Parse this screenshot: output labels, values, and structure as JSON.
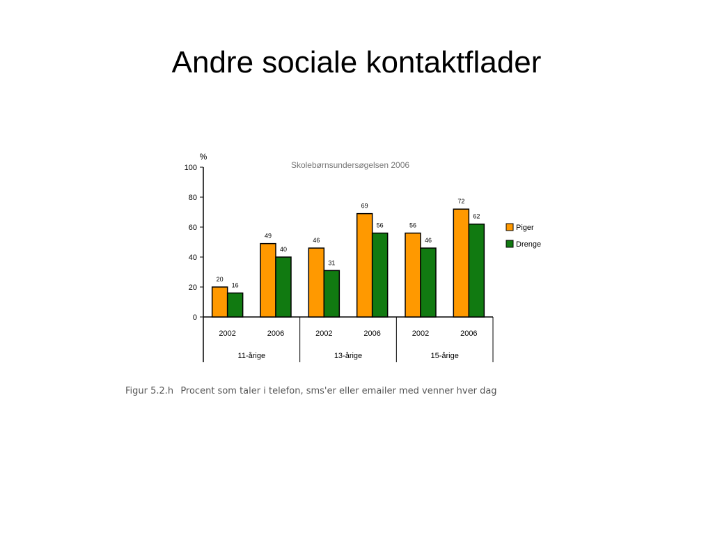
{
  "slide": {
    "title": "Andre sociale kontaktflader",
    "caption_label": "Figur 5.2.h",
    "caption_text": "Procent som taler i telefon, sms'er eller emailer med venner hver dag"
  },
  "chart_data": {
    "type": "bar",
    "title": "Skolebørnsundersøgelsen 2006",
    "ylabel": "%",
    "xlabel": "",
    "ylim": [
      0,
      100
    ],
    "yticks": [
      0,
      20,
      40,
      60,
      80,
      100
    ],
    "grid": false,
    "legend_position": "right",
    "categories": [
      "2002",
      "2006",
      "2002",
      "2006",
      "2002",
      "2006"
    ],
    "groups": [
      "11-årige",
      "13-årige",
      "15-årige"
    ],
    "series": [
      {
        "name": "Piger",
        "color": "#ff9900",
        "values": [
          20,
          49,
          46,
          69,
          56,
          72
        ]
      },
      {
        "name": "Drenge",
        "color": "#117a11",
        "values": [
          16,
          40,
          31,
          56,
          46,
          62
        ]
      }
    ]
  }
}
